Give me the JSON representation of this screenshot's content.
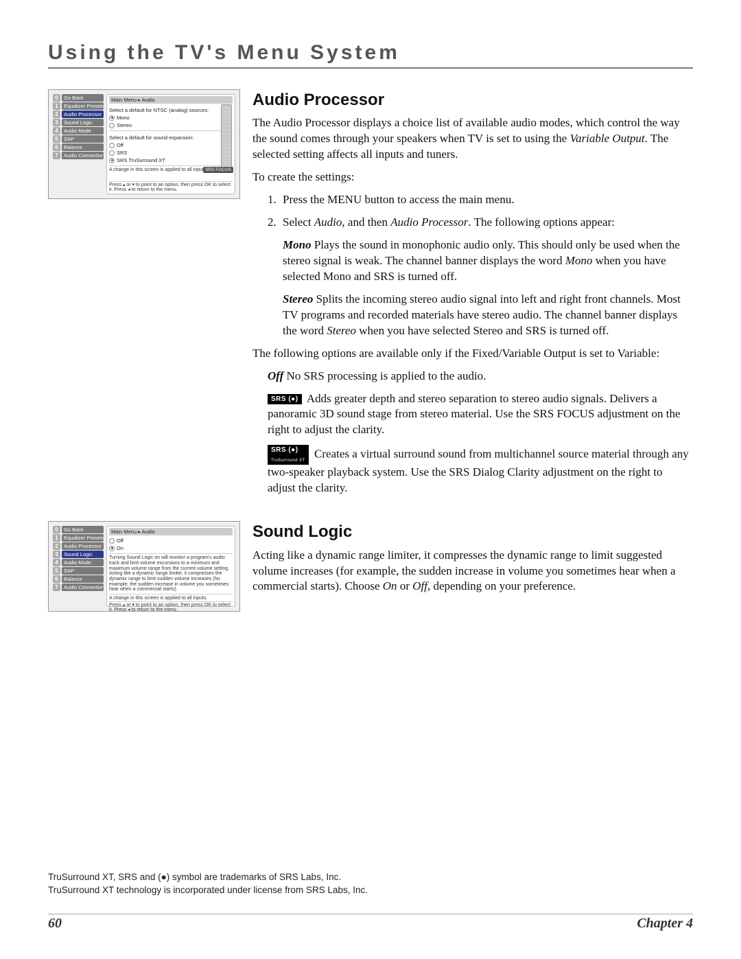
{
  "page": {
    "chapter_title": "Using the TV's Menu System",
    "page_number": "60",
    "chapter_label": "Chapter 4"
  },
  "menu_audio": {
    "crumb": "Main Menu ▸ Audio",
    "items": [
      {
        "n": "0",
        "label": "Go Back"
      },
      {
        "n": "1",
        "label": "Equalizer Presets"
      },
      {
        "n": "2",
        "label": "Audio Processor"
      },
      {
        "n": "3",
        "label": "Sound Logic"
      },
      {
        "n": "4",
        "label": "Audio Mode"
      },
      {
        "n": "5",
        "label": "SAP"
      },
      {
        "n": "6",
        "label": "Balance"
      },
      {
        "n": "7",
        "label": "Audio Connections"
      }
    ],
    "head1": "Select a default for NTSC (analog) sources:",
    "opt_mono": "Mono",
    "opt_stereo": "Stereo",
    "head2": "Select a default for sound expansion:",
    "opt_off": "Off",
    "opt_srs": "SRS",
    "opt_srsxt": "SRS TruSurround XT",
    "note": "A change in this screen is applied to all inputs.",
    "hint": "Press ▴ or ▾ to point to an option, then press OK to select it. Press ◂ to return to the menu.",
    "srs_focus": "SRS FOCUS"
  },
  "menu_sound": {
    "crumb": "Main Menu ▸ Audio",
    "items": [
      {
        "n": "0",
        "label": "Go Back"
      },
      {
        "n": "1",
        "label": "Equalizer Presets"
      },
      {
        "n": "2",
        "label": "Audio Processor"
      },
      {
        "n": "3",
        "label": "Sound Logic"
      },
      {
        "n": "4",
        "label": "Audio Mode"
      },
      {
        "n": "5",
        "label": "SAP"
      },
      {
        "n": "6",
        "label": "Balance"
      },
      {
        "n": "7",
        "label": "Audio Connections"
      }
    ],
    "opt_off": "Off",
    "opt_on": "On",
    "desc": "Turning Sound Logic on will monitor a program's audio track and limit volume excursions to a minimum and maximum volume range from the current volume setting. Acting like a dynamic range limiter, it compresses the dynamic range to limit sudden volume increases (for example, the sudden increase in volume you sometimes hear when a commercial starts).",
    "note": "A change in this screen is applied to all inputs.",
    "hint": "Press ▴ or ▾ to point to an option, then press OK to select it. Press ◂ to return to the menu."
  },
  "audio": {
    "heading": "Audio Processor",
    "intro_a": "The Audio Processor displays a choice list of available audio modes, which control the way the sound comes through your speakers when TV is set to using the ",
    "intro_b": "Variable Output",
    "intro_c": ". The selected setting affects all inputs and tuners.",
    "create": "To create the settings:",
    "n1": "1.",
    "s1": "Press the MENU button to access the main menu.",
    "n2": "2.",
    "s2a": "Select ",
    "s2b": "Audio",
    "s2c": ", and then ",
    "s2d": "Audio Processor",
    "s2e": ". The following options appear:",
    "mono_h": "Mono",
    "mono_a": "   Plays the sound in monophonic audio only. This should only be used when the stereo signal is weak. The channel banner displays the word ",
    "mono_b": "Mono",
    "mono_c": " when you have selected Mono and SRS is turned off.",
    "stereo_h": "Stereo",
    "stereo_a": "   Splits the incoming stereo audio signal into left and right front channels. Most TV programs and recorded materials have stereo audio. The channel banner displays the word ",
    "stereo_b": "Stereo",
    "stereo_c": " when you have selected Stereo and SRS is turned off.",
    "var_note": "The following options are available only if the Fixed/Variable Output is set to Variable:",
    "off_h": "Off",
    "off_t": "   No SRS processing is applied to the audio.",
    "srs_badge1": "SRS (●)",
    "srs1_t": "  Adds greater depth and stereo separation to stereo audio signals. Delivers a panoramic 3D sound stage from stereo material. Use the SRS FOCUS adjustment on the right to adjust the clarity.",
    "srs_badge2": "SRS (●)",
    "srs_badge2_sub": "TruSurround XT",
    "srs2_t": "  Creates a virtual surround sound from multichannel source material through any two-speaker playback system. Use the SRS Dialog Clarity adjustment on the right to adjust the clarity."
  },
  "sound": {
    "heading": "Sound Logic",
    "body_a": "Acting like a dynamic range limiter, it compresses the dynamic range to limit suggested volume increases (for example, the sudden increase in volume you sometimes hear when a commercial starts). Choose ",
    "body_b": "On",
    "body_c": " or ",
    "body_d": "Off",
    "body_e": ", depending on your preference."
  },
  "footnotes": {
    "l1a": "TruSurround XT, SRS and (",
    "l1b": "●",
    "l1c": ") symbol are trademarks of SRS Labs, Inc.",
    "l2": "TruSurround XT technology is incorporated under license from SRS Labs, Inc."
  }
}
